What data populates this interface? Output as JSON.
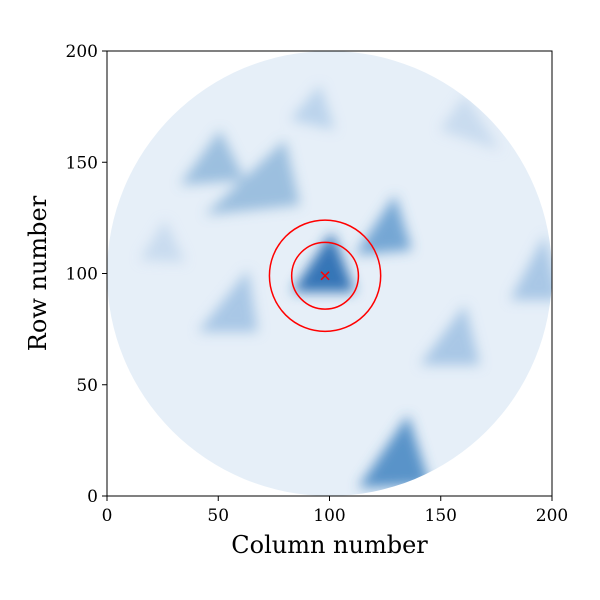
{
  "chart_data": {
    "type": "image",
    "xlabel": "Column number",
    "ylabel": "Row number",
    "xlim": [
      0,
      200
    ],
    "ylim": [
      0,
      200
    ],
    "xticks": [
      0,
      50,
      100,
      150,
      200
    ],
    "yticks": [
      0,
      50,
      100,
      150,
      200
    ],
    "mask_center": [
      100,
      100
    ],
    "mask_radius": 100,
    "marker": {
      "x": 98,
      "y": 99,
      "color": "red"
    },
    "circle_radii": [
      15,
      25
    ],
    "circle_color": "red"
  }
}
